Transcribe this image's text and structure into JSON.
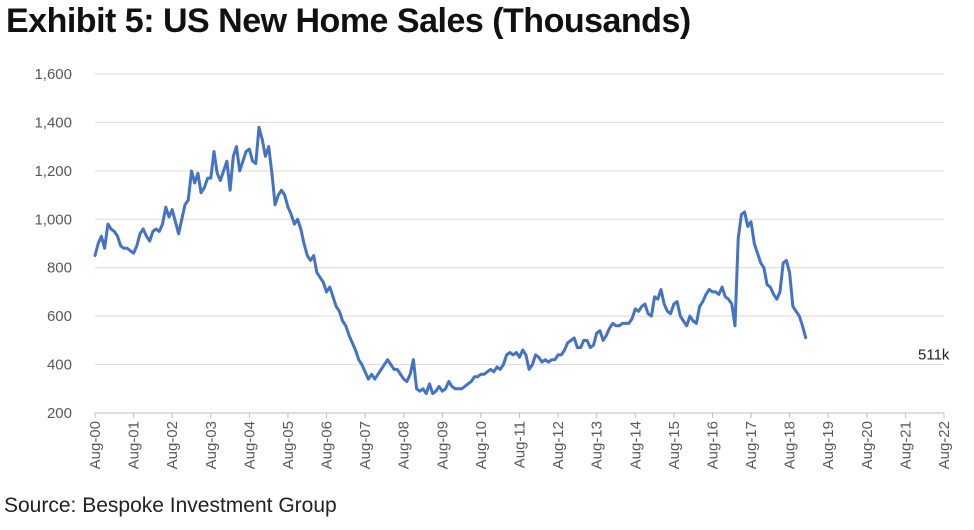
{
  "title": "Exhibit 5: US New Home Sales (Thousands)",
  "source": "Source: Bespoke Investment Group",
  "colors": {
    "line": "#4472C4",
    "grid": "#D9D9D9",
    "axis": "#BFBFBF"
  },
  "chart_data": {
    "type": "line",
    "title": "Exhibit 5: US New Home Sales (Thousands)",
    "xlabel": "",
    "ylabel": "",
    "ylim": [
      200,
      1600
    ],
    "yticks": [
      200,
      400,
      600,
      800,
      1000,
      1200,
      1400,
      1600
    ],
    "ytick_labels": [
      "200",
      "400",
      "600",
      "800",
      "1,000",
      "1,200",
      "1,400",
      "1,600"
    ],
    "xtick_labels": [
      "Aug-00",
      "Aug-01",
      "Aug-02",
      "Aug-03",
      "Aug-04",
      "Aug-05",
      "Aug-06",
      "Aug-07",
      "Aug-08",
      "Aug-09",
      "Aug-10",
      "Aug-11",
      "Aug-12",
      "Aug-13",
      "Aug-14",
      "Aug-15",
      "Aug-16",
      "Aug-17",
      "Aug-18",
      "Aug-19",
      "Aug-20",
      "Aug-21",
      "Aug-22"
    ],
    "grid": true,
    "annotation": {
      "text": "511k",
      "x": "Aug-22",
      "y": 511
    },
    "series": [
      {
        "x_start": "Aug-00",
        "frequency": "monthly",
        "values": [
          850,
          900,
          930,
          880,
          980,
          960,
          950,
          930,
          890,
          880,
          880,
          870,
          860,
          890,
          940,
          960,
          930,
          910,
          950,
          960,
          950,
          980,
          1050,
          1010,
          1040,
          990,
          940,
          1000,
          1060,
          1080,
          1200,
          1150,
          1190,
          1110,
          1130,
          1170,
          1170,
          1280,
          1190,
          1160,
          1200,
          1240,
          1120,
          1260,
          1300,
          1200,
          1240,
          1280,
          1290,
          1240,
          1230,
          1380,
          1330,
          1260,
          1300,
          1190,
          1060,
          1100,
          1120,
          1100,
          1050,
          1020,
          980,
          1000,
          960,
          900,
          850,
          830,
          850,
          780,
          760,
          740,
          700,
          720,
          680,
          640,
          620,
          580,
          560,
          520,
          490,
          460,
          420,
          400,
          370,
          340,
          360,
          340,
          360,
          380,
          400,
          420,
          400,
          380,
          380,
          360,
          340,
          330,
          360,
          420,
          300,
          290,
          300,
          280,
          320,
          280,
          290,
          310,
          290,
          300,
          330,
          310,
          300,
          300,
          300,
          310,
          320,
          330,
          350,
          350,
          360,
          360,
          370,
          380,
          370,
          390,
          380,
          400,
          440,
          450,
          440,
          450,
          430,
          460,
          440,
          380,
          400,
          440,
          430,
          410,
          420,
          410,
          420,
          420,
          440,
          440,
          460,
          490,
          500,
          510,
          470,
          470,
          500,
          500,
          470,
          480,
          530,
          540,
          500,
          520,
          550,
          570,
          560,
          560,
          570,
          570,
          570,
          590,
          630,
          620,
          640,
          650,
          610,
          600,
          680,
          670,
          710,
          650,
          620,
          610,
          650,
          660,
          600,
          580,
          560,
          600,
          580,
          570,
          640,
          660,
          690,
          710,
          700,
          700,
          690,
          720,
          680,
          670,
          650,
          560,
          920,
          1020,
          1030,
          970,
          990,
          900,
          860,
          820,
          800,
          730,
          720,
          690,
          670,
          700,
          820,
          830,
          780,
          640,
          620,
          600,
          560,
          511
        ]
      }
    ]
  }
}
